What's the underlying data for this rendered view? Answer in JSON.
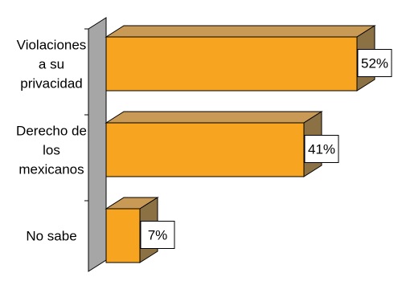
{
  "chart_data": {
    "type": "bar",
    "orientation": "horizontal",
    "three_d": true,
    "categories": [
      [
        "Violaciones",
        "a su",
        "privacidad"
      ],
      [
        "Derecho de",
        "los",
        "mexicanos"
      ],
      [
        "No sabe"
      ]
    ],
    "values": [
      52,
      41,
      7
    ],
    "data_labels": [
      "52%",
      "41%",
      "7%"
    ],
    "xlim": [
      0,
      60
    ],
    "grid": false,
    "legend": "none",
    "colors": {
      "bar_front": "#F7A520",
      "bar_top": "#C99A55",
      "bar_side": "#8C7144",
      "axis_wall": "#A6A6A6",
      "label_box_border": "#000000",
      "label_box_fill": "#FFFFFF"
    }
  }
}
